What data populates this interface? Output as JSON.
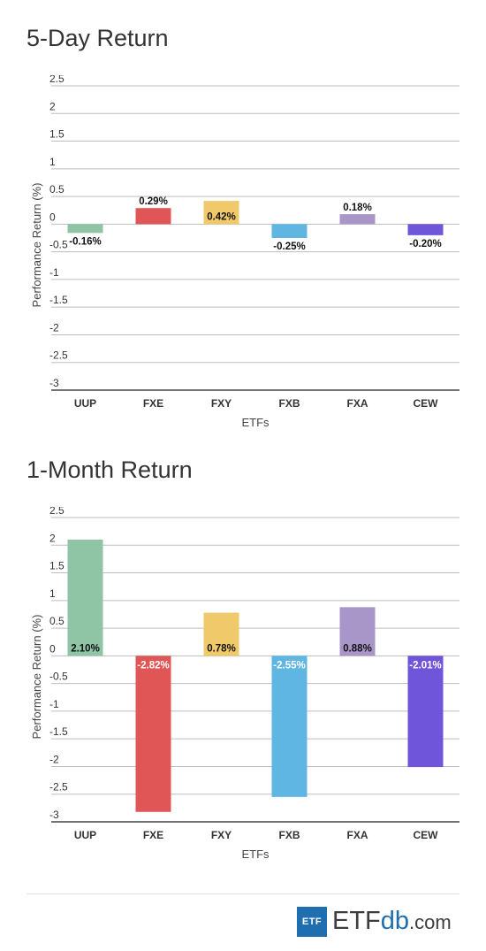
{
  "logo": {
    "box": "ETF",
    "part1": "ETF",
    "part2": "db",
    "part3": ".com",
    "brand_color": "#1f6fb0"
  },
  "chart_data": [
    {
      "type": "bar",
      "title": "5-Day Return",
      "xlabel": "ETFs",
      "ylabel": "Performance Return (%)",
      "ylim": [
        -3,
        2.5
      ],
      "yticks": [
        2.5,
        2,
        1.5,
        1,
        0.5,
        0,
        -0.5,
        -1,
        -1.5,
        -2,
        -2.5,
        -3
      ],
      "ytick_labels": [
        "2.5",
        "2",
        "1.5",
        "1",
        "0.5",
        "0",
        "-0.5",
        "-1",
        "-1.5",
        "-2",
        "-2.5",
        "-3"
      ],
      "grid": true,
      "categories": [
        "UUP",
        "FXE",
        "FXY",
        "FXB",
        "FXA",
        "CEW"
      ],
      "values": [
        -0.16,
        0.29,
        0.42,
        -0.25,
        0.18,
        -0.2
      ],
      "labels": [
        "-0.16%",
        "0.29%",
        "0.42%",
        "-0.25%",
        "0.18%",
        "-0.20%"
      ],
      "colors": [
        "#8fc4a5",
        "#e05555",
        "#f0c96b",
        "#5fb6e3",
        "#a996c9",
        "#6e55d9"
      ]
    },
    {
      "type": "bar",
      "title": "1-Month Return",
      "xlabel": "ETFs",
      "ylabel": "Performance Return (%)",
      "ylim": [
        -3,
        2.5
      ],
      "yticks": [
        2.5,
        2,
        1.5,
        1,
        0.5,
        0,
        -0.5,
        -1,
        -1.5,
        -2,
        -2.5,
        -3
      ],
      "ytick_labels": [
        "2.5",
        "2",
        "1.5",
        "1",
        "0.5",
        "0",
        "-0.5",
        "-1",
        "-1.5",
        "-2",
        "-2.5",
        "-3"
      ],
      "grid": true,
      "categories": [
        "UUP",
        "FXE",
        "FXY",
        "FXB",
        "FXA",
        "CEW"
      ],
      "values": [
        2.1,
        -2.82,
        0.78,
        -2.55,
        0.88,
        -2.01
      ],
      "labels": [
        "2.10%",
        "-2.82%",
        "0.78%",
        "-2.55%",
        "0.88%",
        "-2.01%"
      ],
      "colors": [
        "#8fc4a5",
        "#e05555",
        "#f0c96b",
        "#5fb6e3",
        "#a996c9",
        "#6e55d9"
      ]
    }
  ]
}
